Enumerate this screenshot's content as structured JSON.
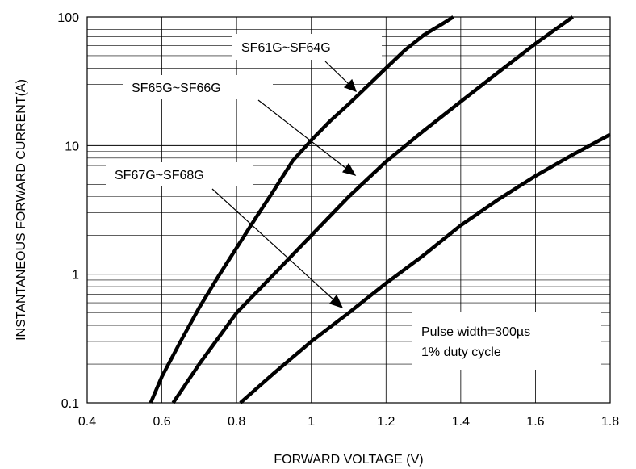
{
  "chart_data": {
    "type": "line",
    "xlabel": "FORWARD VOLTAGE (V)",
    "ylabel": "INSTANTANEOUS FORWARD CURRENT(A)",
    "xlim": [
      0.4,
      1.8
    ],
    "ylim": [
      0.1,
      100
    ],
    "yscale": "log",
    "grid": true,
    "x_ticks": [
      "0.4",
      "0.6",
      "0.8",
      "1",
      "1.2",
      "1.4",
      "1.6",
      "1.8"
    ],
    "y_ticks": [
      "0.1",
      "1",
      "10",
      "100"
    ],
    "series": [
      {
        "name": "SF61G~SF64G",
        "x": [
          0.57,
          0.6,
          0.65,
          0.7,
          0.75,
          0.8,
          0.85,
          0.9,
          0.95,
          1.0,
          1.05,
          1.1,
          1.15,
          1.2,
          1.25,
          1.3,
          1.35,
          1.38
        ],
        "y": [
          0.1,
          0.16,
          0.3,
          0.55,
          0.95,
          1.6,
          2.7,
          4.5,
          7.6,
          11,
          15.5,
          21,
          29,
          40,
          55,
          72,
          88,
          100
        ]
      },
      {
        "name": "SF65G~SF66G",
        "x": [
          0.63,
          0.7,
          0.8,
          0.9,
          1.0,
          1.1,
          1.2,
          1.3,
          1.4,
          1.5,
          1.6,
          1.7
        ],
        "y": [
          0.1,
          0.2,
          0.5,
          1.0,
          2.0,
          4.0,
          7.5,
          13,
          22,
          37,
          62,
          100
        ]
      },
      {
        "name": "SF67G~SF68G",
        "x": [
          0.81,
          0.9,
          1.0,
          1.1,
          1.2,
          1.3,
          1.4,
          1.5,
          1.6,
          1.7,
          1.8
        ],
        "y": [
          0.1,
          0.17,
          0.3,
          0.5,
          0.85,
          1.4,
          2.4,
          3.8,
          5.8,
          8.5,
          12.2
        ]
      }
    ],
    "annotations": {
      "label1": "SF61G~SF64G",
      "label2": "SF65G~SF66G",
      "label3": "SF67G~SF68G",
      "note_line1": "Pulse width=300µs",
      "note_line2": "1% duty cycle"
    }
  }
}
